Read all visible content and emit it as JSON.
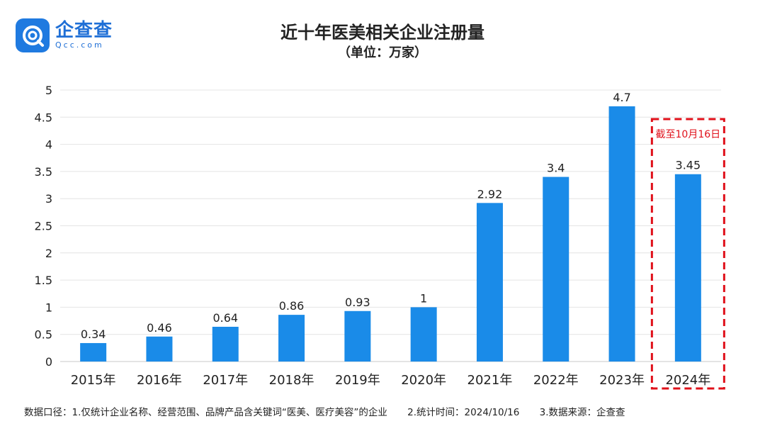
{
  "logo": {
    "name": "企查查",
    "sub": "Qcc.com"
  },
  "chart_data": {
    "type": "bar",
    "title": "近十年医美相关企业注册量",
    "subtitle": "（单位：万家）",
    "categories": [
      "2015年",
      "2016年",
      "2017年",
      "2018年",
      "2019年",
      "2020年",
      "2021年",
      "2022年",
      "2023年",
      "2024年"
    ],
    "values": [
      0.34,
      0.46,
      0.64,
      0.86,
      0.93,
      1,
      2.92,
      3.4,
      4.7,
      3.45
    ],
    "data_labels": [
      "0.34",
      "0.46",
      "0.64",
      "0.86",
      "0.93",
      "1",
      "2.92",
      "3.4",
      "4.7",
      "3.45"
    ],
    "yticks": [
      "0",
      "0.5",
      "1",
      "1.5",
      "2",
      "2.5",
      "3",
      "3.5",
      "4",
      "4.5",
      "5"
    ],
    "ylim": [
      0,
      5
    ],
    "grid": true,
    "bar_color": "#1a8be8",
    "highlight": {
      "category": "2024年",
      "note": "截至10月16日",
      "color": "#e0101a"
    }
  },
  "footnote": {
    "caliber": "数据口径：1.仅统计企业名称、经营范围、品牌产品含关键词“医美、医疗美容”的企业",
    "time": "2.统计时间：2024/10/16",
    "source": "3.数据来源：企查查"
  }
}
